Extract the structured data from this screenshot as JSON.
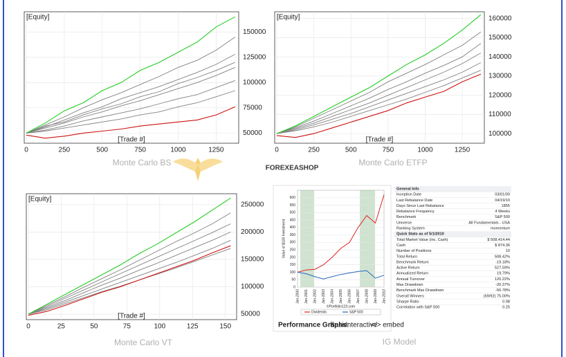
{
  "chart_data": [
    {
      "type": "line",
      "caption": "Monte Carlo BS",
      "ylabel": "[Equity]",
      "xlabel": "[Trade #]",
      "x": [
        0,
        125,
        250,
        375,
        500,
        625,
        750,
        875,
        1000,
        1125,
        1250,
        1375
      ],
      "xlim": [
        0,
        1385
      ],
      "ylim": [
        40000,
        170000
      ],
      "xticks": [
        0,
        250,
        500,
        750,
        1000,
        1250
      ],
      "yticks": [
        50000,
        75000,
        100000,
        125000,
        150000
      ],
      "grid": true,
      "series": [
        {
          "color": "#808080",
          "values": [
            50000,
            58000,
            66000,
            75000,
            83000,
            90000,
            98000,
            106000,
            115000,
            122000,
            132000,
            145000
          ]
        },
        {
          "color": "#808080",
          "values": [
            50000,
            56000,
            63000,
            70000,
            76000,
            84000,
            90000,
            96000,
            103000,
            110000,
            118000,
            128000
          ]
        },
        {
          "color": "#808080",
          "values": [
            50000,
            57000,
            61000,
            68000,
            74000,
            79000,
            86000,
            91000,
            99000,
            105000,
            112000,
            120000
          ]
        },
        {
          "color": "#808080",
          "values": [
            50000,
            55000,
            60000,
            66000,
            71000,
            77000,
            82000,
            88000,
            94000,
            100000,
            107000,
            115000
          ]
        },
        {
          "color": "#808080",
          "values": [
            50000,
            53000,
            57000,
            62000,
            66000,
            70000,
            74000,
            79000,
            84000,
            88000,
            95000,
            102000
          ]
        },
        {
          "color": "#808080",
          "values": [
            50000,
            52000,
            55000,
            58000,
            61000,
            64000,
            68000,
            71000,
            76000,
            80000,
            86000,
            92000
          ]
        },
        {
          "color": "#22cc22",
          "values": [
            50000,
            60000,
            72000,
            80000,
            92000,
            100000,
            112000,
            120000,
            130000,
            140000,
            155000,
            165000
          ]
        },
        {
          "color": "#cc1111",
          "values": [
            48000,
            45000,
            47000,
            50000,
            52000,
            54000,
            57000,
            59000,
            61000,
            63000,
            68000,
            76000
          ]
        }
      ]
    },
    {
      "type": "line",
      "caption": "Monte Carlo ETFP",
      "ylabel": "[Equity]",
      "xlabel": "[Trade #]",
      "x": [
        0,
        125,
        250,
        375,
        500,
        625,
        750,
        875,
        1000,
        1125,
        1250,
        1375
      ],
      "xlim": [
        0,
        1385
      ],
      "ylim": [
        95000,
        163500
      ],
      "xticks": [
        0,
        250,
        500,
        750,
        1000,
        1250
      ],
      "yticks": [
        100000,
        110000,
        120000,
        130000,
        140000,
        150000,
        160000
      ],
      "grid": true,
      "series": [
        {
          "color": "#808080",
          "values": [
            100000,
            103500,
            108000,
            112500,
            117000,
            121500,
            127000,
            131500,
            136000,
            141000,
            146000,
            153000
          ]
        },
        {
          "color": "#808080",
          "values": [
            100000,
            103000,
            106500,
            110500,
            114500,
            118500,
            123000,
            127000,
            131500,
            135500,
            140000,
            147000
          ]
        },
        {
          "color": "#808080",
          "values": [
            100000,
            102500,
            105500,
            109000,
            112500,
            116000,
            120000,
            124000,
            128000,
            132000,
            136500,
            142000
          ]
        },
        {
          "color": "#808080",
          "values": [
            100000,
            102000,
            104500,
            107500,
            110500,
            114000,
            117500,
            121000,
            124500,
            128000,
            132000,
            137000
          ]
        },
        {
          "color": "#808080",
          "values": [
            100000,
            101500,
            103500,
            106000,
            109000,
            112000,
            115000,
            118000,
            121500,
            125000,
            129000,
            133000
          ]
        },
        {
          "color": "#22cc22",
          "values": [
            100000,
            104000,
            109000,
            114000,
            119000,
            124000,
            130000,
            136000,
            141000,
            147000,
            154000,
            162000
          ]
        },
        {
          "color": "#cc1111",
          "values": [
            99000,
            98000,
            100000,
            103000,
            106000,
            109000,
            112000,
            116000,
            119000,
            122000,
            127000,
            131000
          ]
        }
      ]
    },
    {
      "type": "line",
      "caption": "Monte Carlo VT",
      "ylabel": "[Equity]",
      "xlabel": "[Trade #]",
      "x": [
        0,
        14,
        28,
        42,
        56,
        70,
        84,
        98,
        112,
        126,
        140,
        154
      ],
      "xlim": [
        0,
        157
      ],
      "ylim": [
        40000,
        270000
      ],
      "xticks": [
        0,
        25,
        50,
        75,
        100,
        125,
        150
      ],
      "yticks": [
        50000,
        100000,
        150000,
        200000,
        250000
      ],
      "grid": true,
      "series": [
        {
          "color": "#808080",
          "values": [
            50000,
            66000,
            82000,
            99000,
            115000,
            131000,
            148000,
            165000,
            182000,
            198000,
            215000,
            235000
          ]
        },
        {
          "color": "#808080",
          "values": [
            50000,
            64000,
            79000,
            94000,
            109000,
            124000,
            139000,
            154000,
            169000,
            184000,
            199000,
            215000
          ]
        },
        {
          "color": "#808080",
          "values": [
            50000,
            62000,
            75000,
            89000,
            103000,
            116000,
            130000,
            143000,
            157000,
            171000,
            185000,
            200000
          ]
        },
        {
          "color": "#808080",
          "values": [
            50000,
            60000,
            72000,
            84000,
            96000,
            108000,
            120000,
            132000,
            144000,
            157000,
            170000,
            185000
          ]
        },
        {
          "color": "#808080",
          "values": [
            50000,
            58000,
            69000,
            80000,
            91000,
            101000,
            112000,
            123000,
            134000,
            146000,
            158000,
            170000
          ]
        },
        {
          "color": "#22cc22",
          "values": [
            50000,
            68000,
            86000,
            104000,
            122000,
            140000,
            160000,
            178000,
            198000,
            218000,
            240000,
            262000
          ]
        },
        {
          "color": "#cc1111",
          "values": [
            48000,
            55000,
            66000,
            78000,
            90000,
            100000,
            112000,
            124000,
            136000,
            148000,
            162000,
            175000
          ]
        }
      ]
    },
    {
      "type": "line",
      "caption": "IG Model",
      "ylabel": "Value of $100 Investment",
      "source": "©Portfolio123.com",
      "categories": [
        "Jan-2000",
        "Jan-2001",
        "Jan-2002",
        "Jan-2003",
        "Jan-2004",
        "Jan-2005",
        "Jan-2006",
        "Jan-2007",
        "Jan-2008",
        "Jan-2009",
        "Jan-2010"
      ],
      "ylim": [
        0,
        650
      ],
      "yticks": [
        0,
        50,
        100,
        150,
        200,
        250,
        300,
        350,
        400,
        450,
        500,
        550,
        600
      ],
      "grid": true,
      "series": [
        {
          "name": "Dividends",
          "color": "#dd2222",
          "values": [
            100,
            115,
            120,
            150,
            200,
            260,
            300,
            400,
            480,
            430,
            620
          ]
        },
        {
          "name": "S&P 500",
          "color": "#2266bb",
          "values": [
            100,
            90,
            70,
            55,
            70,
            85,
            95,
            105,
            110,
            60,
            80
          ]
        }
      ]
    }
  ],
  "links": {
    "label": "Performance Graphs:",
    "items": [
      "Basic",
      "Interactive",
      "</> embed"
    ]
  },
  "watermark": "FOREXEASHOP",
  "table": {
    "sections": [
      {
        "heading": "General Info",
        "rows": [
          [
            "Inception Date",
            "03/01/00"
          ],
          [
            "Last Rebalance Date",
            "04/19/10"
          ],
          [
            "Days Since Last Rebalance",
            "1855"
          ],
          [
            "Rebalance Frequency",
            "4 Weeks"
          ],
          [
            "Benchmark",
            "S&P 500"
          ],
          [
            "Universe",
            "All Fundamentals - USA"
          ],
          [
            "Ranking System",
            "momentum"
          ]
        ]
      },
      {
        "heading": "Quick Stats as of 5/1/2010",
        "rows": [
          [
            "Total Market Value (inc. Cash)",
            "$ 508,414.44"
          ],
          [
            "Cash",
            "$ 874.36"
          ],
          [
            "Number of Positions",
            "10"
          ],
          [
            "Total Return",
            "508.42%"
          ],
          [
            "Benchmark Return",
            "-19.18%"
          ],
          [
            "Active Return",
            "527.59%"
          ],
          [
            "Annualized Return",
            "19.79%"
          ],
          [
            "Annual Turnover",
            "120.22%"
          ],
          [
            "Max Drawdown",
            "-20.37%"
          ],
          [
            "Benchmark Max Drawdown",
            "-56.78%"
          ],
          [
            "Overall Winners",
            "(69/92) 75.00%"
          ],
          [
            "Sharpe Ratio",
            "0.98"
          ],
          [
            "Correlation with S&P 500",
            "0.25"
          ]
        ]
      }
    ]
  }
}
